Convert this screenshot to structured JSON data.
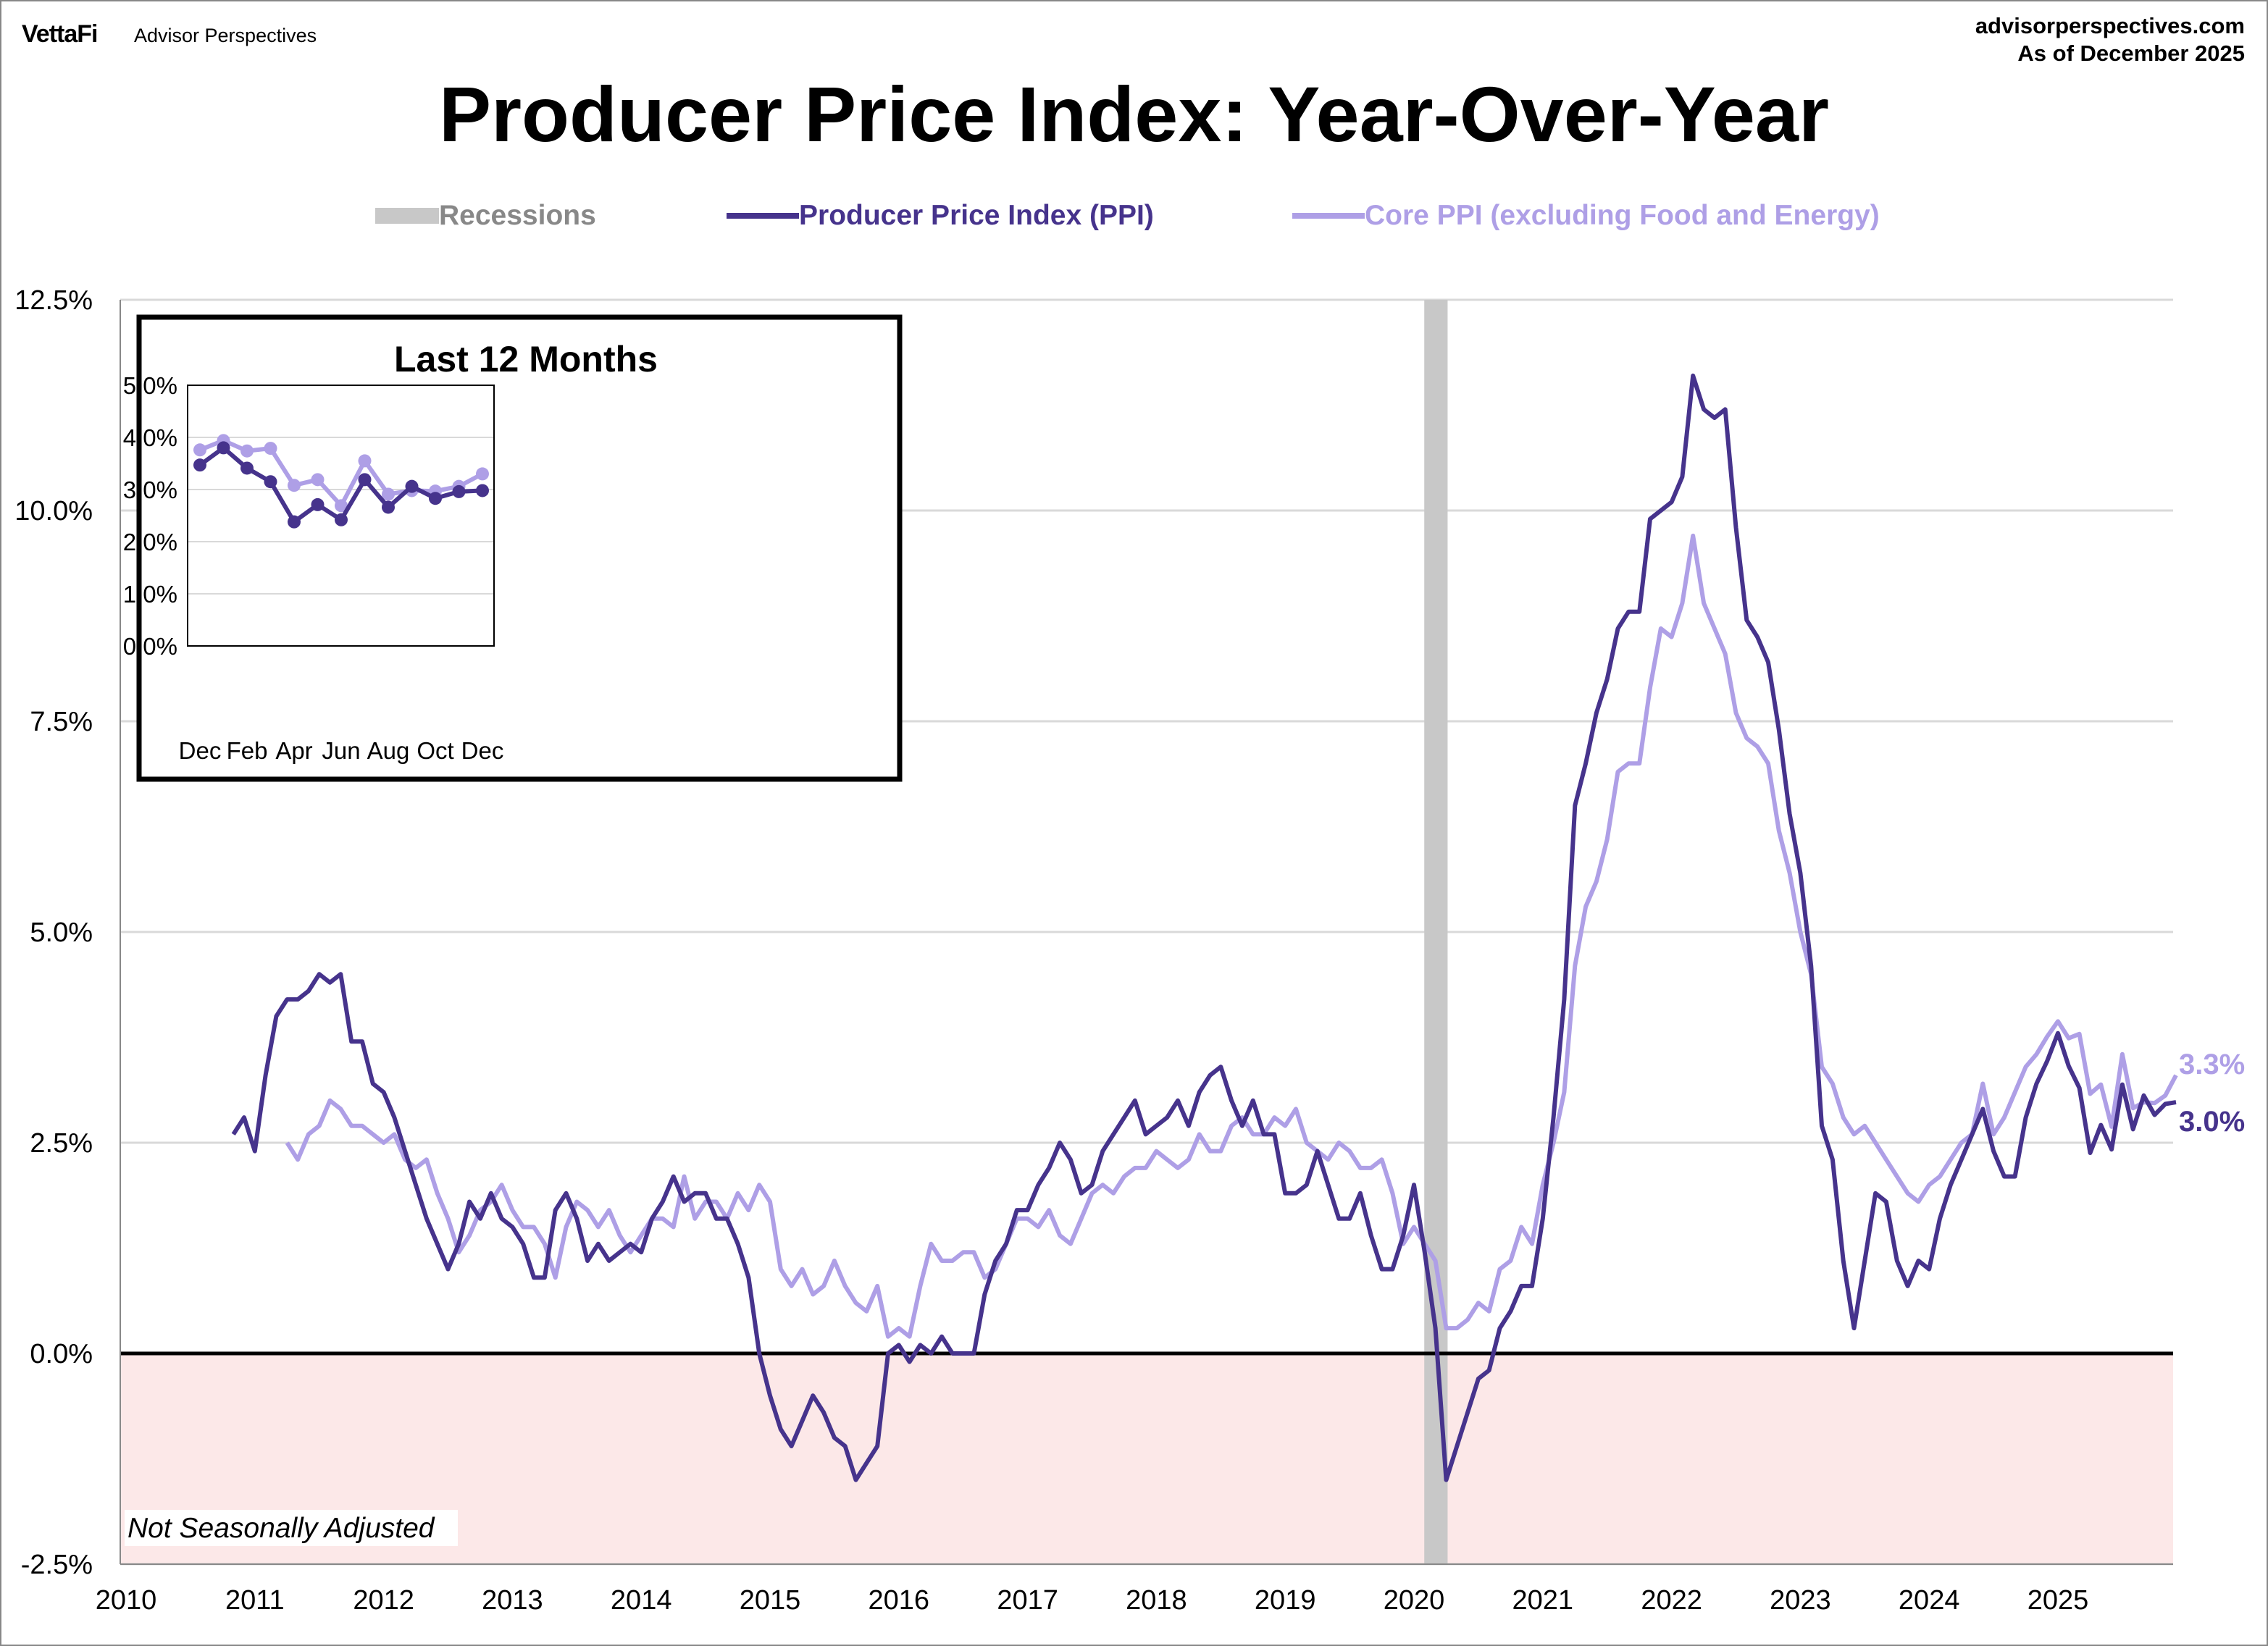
{
  "header": {
    "brand": "VettaFi",
    "brand_sub": "Advisor Perspectives",
    "site": "advisorperspectives.com",
    "as_of": "As of December 2025"
  },
  "colors": {
    "ppi": "#46338c",
    "core": "#ae9fe6",
    "recession": "#c8c8c8",
    "negative_zone": "#fce8e8"
  },
  "chart_data": {
    "type": "line",
    "title": "Producer Price Index: Year-Over-Year",
    "legend": [
      "Recessions",
      "Producer Price Index (PPI)",
      "Core PPI (excluding Food and Energy)"
    ],
    "legend_placement": "top-center",
    "ylim": [
      -2.5,
      12.5
    ],
    "xlim": [
      2010,
      2026
    ],
    "yticks": [
      "-2.5%",
      "0.0%",
      "2.5%",
      "5.0%",
      "7.5%",
      "10.0%",
      "12.5%"
    ],
    "xticks": [
      "2010",
      "2011",
      "2012",
      "2013",
      "2014",
      "2015",
      "2016",
      "2017",
      "2018",
      "2019",
      "2020",
      "2021",
      "2022",
      "2023",
      "2024",
      "2025"
    ],
    "note": "Not Seasonally Adjusted",
    "recessions": [
      [
        2020.08,
        2020.25
      ]
    ],
    "end_labels": {
      "core": "3.3%",
      "ppi": "3.0%"
    },
    "series": [
      {
        "name": "Producer Price Index (PPI)",
        "start": "2010-11",
        "values": [
          2.6,
          2.8,
          2.4,
          3.3,
          4.0,
          4.2,
          4.2,
          4.3,
          4.5,
          4.4,
          4.5,
          3.7,
          3.7,
          3.2,
          3.1,
          2.8,
          2.4,
          2.0,
          1.6,
          1.3,
          1.0,
          1.3,
          1.8,
          1.6,
          1.9,
          1.6,
          1.5,
          1.3,
          0.9,
          0.9,
          1.7,
          1.9,
          1.6,
          1.1,
          1.3,
          1.1,
          1.2,
          1.3,
          1.2,
          1.6,
          1.8,
          2.1,
          1.8,
          1.9,
          1.9,
          1.6,
          1.6,
          1.3,
          0.9,
          0.0,
          -0.5,
          -0.9,
          -1.1,
          -0.8,
          -0.5,
          -0.7,
          -1.0,
          -1.1,
          -1.5,
          -1.3,
          -1.1,
          0.0,
          0.1,
          -0.1,
          0.1,
          0.0,
          0.2,
          0.0,
          0.0,
          0.0,
          0.7,
          1.1,
          1.3,
          1.7,
          1.7,
          2.0,
          2.2,
          2.5,
          2.3,
          1.9,
          2.0,
          2.4,
          2.6,
          2.8,
          3.0,
          2.6,
          2.7,
          2.8,
          3.0,
          2.7,
          3.1,
          3.3,
          3.4,
          3.0,
          2.7,
          3.0,
          2.6,
          2.6,
          1.9,
          1.9,
          2.0,
          2.4,
          2.0,
          1.6,
          1.6,
          1.9,
          1.4,
          1.0,
          1.0,
          1.4,
          2.0,
          1.2,
          0.3,
          -1.5,
          -1.1,
          -0.7,
          -0.3,
          -0.2,
          0.3,
          0.5,
          0.8,
          0.8,
          1.6,
          2.8,
          4.2,
          6.5,
          7.0,
          7.6,
          8.0,
          8.6,
          8.8,
          8.8,
          9.9,
          10.0,
          10.1,
          10.4,
          11.6,
          11.2,
          11.1,
          11.2,
          9.8,
          8.7,
          8.5,
          8.2,
          7.4,
          6.4,
          5.7,
          4.6,
          2.7,
          2.3,
          1.1,
          0.3,
          1.1,
          1.9,
          1.8,
          1.1,
          0.8,
          1.1,
          1.0,
          1.6,
          2.0,
          2.3,
          2.6,
          2.9,
          2.4,
          2.1,
          2.1,
          2.8,
          3.2,
          3.47,
          3.8,
          3.41,
          3.15,
          2.38,
          2.71,
          2.42,
          3.19,
          2.66,
          3.06,
          2.83,
          2.96,
          2.98
        ]
      },
      {
        "name": "Core PPI (excluding Food and Energy)",
        "start": "2011-04",
        "values": [
          2.5,
          2.3,
          2.6,
          2.7,
          3.0,
          2.9,
          2.7,
          2.7,
          2.6,
          2.5,
          2.6,
          2.3,
          2.2,
          2.3,
          1.9,
          1.6,
          1.2,
          1.4,
          1.7,
          1.8,
          2.0,
          1.7,
          1.5,
          1.5,
          1.3,
          0.9,
          1.5,
          1.8,
          1.7,
          1.5,
          1.7,
          1.4,
          1.2,
          1.4,
          1.6,
          1.6,
          1.5,
          2.1,
          1.6,
          1.8,
          1.8,
          1.6,
          1.9,
          1.7,
          2.0,
          1.8,
          1.0,
          0.8,
          1.0,
          0.7,
          0.8,
          1.1,
          0.8,
          0.6,
          0.5,
          0.8,
          0.2,
          0.3,
          0.2,
          0.8,
          1.3,
          1.1,
          1.1,
          1.2,
          1.2,
          0.9,
          1.0,
          1.3,
          1.6,
          1.6,
          1.5,
          1.7,
          1.4,
          1.3,
          1.6,
          1.9,
          2.0,
          1.9,
          2.1,
          2.2,
          2.2,
          2.4,
          2.3,
          2.2,
          2.3,
          2.6,
          2.4,
          2.4,
          2.7,
          2.8,
          2.6,
          2.6,
          2.8,
          2.7,
          2.9,
          2.5,
          2.4,
          2.3,
          2.5,
          2.4,
          2.2,
          2.2,
          2.3,
          1.9,
          1.3,
          1.5,
          1.3,
          1.1,
          0.3,
          0.3,
          0.4,
          0.6,
          0.5,
          1.0,
          1.1,
          1.5,
          1.3,
          2.0,
          2.5,
          3.1,
          4.6,
          5.3,
          5.6,
          6.1,
          6.9,
          7.0,
          7.0,
          7.9,
          8.6,
          8.5,
          8.9,
          9.7,
          8.9,
          8.6,
          8.3,
          7.6,
          7.3,
          7.2,
          7.0,
          6.2,
          5.7,
          5.0,
          4.5,
          3.4,
          3.2,
          2.8,
          2.6,
          2.7,
          2.5,
          2.3,
          2.1,
          1.9,
          1.8,
          2.0,
          2.1,
          2.3,
          2.5,
          2.6,
          3.2,
          2.6,
          2.8,
          3.1,
          3.4,
          3.55,
          3.76,
          3.94,
          3.74,
          3.79,
          3.08,
          3.19,
          2.69,
          3.55,
          2.91,
          2.98,
          2.97,
          3.06,
          3.3
        ]
      }
    ],
    "inset": {
      "title": "Last 12 Months",
      "ylim": [
        0,
        5
      ],
      "yticks": [
        "0.0%",
        "1.0%",
        "2.0%",
        "3.0%",
        "4.0%",
        "5.0%"
      ],
      "months": [
        "Dec",
        "Jan",
        "Feb",
        "Mar",
        "Apr",
        "May",
        "Jun",
        "Jul",
        "Aug",
        "Sep",
        "Oct",
        "Nov",
        "Dec"
      ],
      "xtick_labels": [
        "Dec",
        "Feb",
        "Apr",
        "Jun",
        "Aug",
        "Oct",
        "Dec"
      ],
      "ppi": [
        3.47,
        3.8,
        3.41,
        3.15,
        2.38,
        2.71,
        2.42,
        3.19,
        2.66,
        3.06,
        2.83,
        2.96,
        2.98
      ],
      "core": [
        3.76,
        3.94,
        3.74,
        3.79,
        3.08,
        3.19,
        2.69,
        3.55,
        2.91,
        2.98,
        2.97,
        3.06,
        3.3
      ]
    }
  }
}
